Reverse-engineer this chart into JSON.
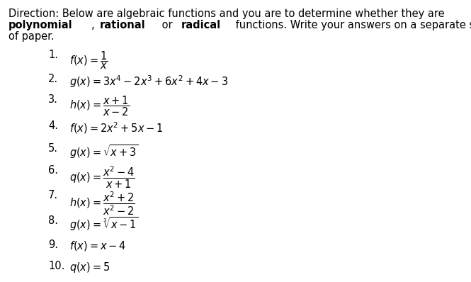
{
  "bg_color": "#ffffff",
  "text_color": "#000000",
  "direction_line1": "Direction: Below are algebraic functions and you are to determine whether they are",
  "direction_line3": "of paper.",
  "font_size_dir": 10.5,
  "font_size_item": 10.5,
  "fig_width": 6.65,
  "fig_height": 3.98,
  "numbers": [
    "1.",
    "2.",
    "3.",
    "4.",
    "5.",
    "6.",
    "7.",
    "8.",
    "9.",
    "10."
  ],
  "math_exprs": [
    "$f(x) = \\dfrac{1}{x}$",
    "$g(x) = 3x^4 - 2x^3 + 6x^2 + 4x - 3$",
    "$h(x) = \\dfrac{x+1}{x-2}$",
    "$f(x) = 2x^2 + 5x - 1$",
    "$g(x) = \\sqrt{x+3}$",
    "$q(x) = \\dfrac{x^2-4}{x+1}$",
    "$h(x) = \\dfrac{x^2+2}{x^2-2}$",
    "$g(x) = \\sqrt[3]{x-1}$",
    "$f(x) = x - 4$",
    "$q(x) = 5$"
  ],
  "line2_segments": [
    {
      "text": "polynomial",
      "bold": true
    },
    {
      "text": ", ",
      "bold": false
    },
    {
      "text": "rational",
      "bold": true
    },
    {
      "text": " or ",
      "bold": false
    },
    {
      "text": "radical",
      "bold": true
    },
    {
      "text": " functions. Write your answers on a separate sheet",
      "bold": false
    }
  ]
}
